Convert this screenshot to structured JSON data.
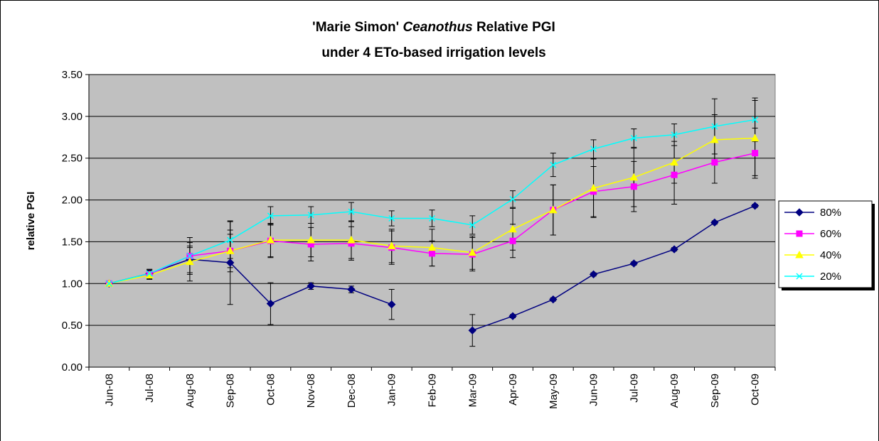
{
  "chart_data": {
    "type": "line",
    "title": [
      "'Marie Simon'",
      "Ceanothus",
      "Relative PGI"
    ],
    "subtitle": "under 4 ETo-based irrigation levels",
    "y_label": "relative PGI",
    "categories": [
      "Jun-08",
      "Jul-08",
      "Aug-08",
      "Sep-08",
      "Oct-08",
      "Nov-08",
      "Dec-08",
      "Jan-09",
      "Feb-09",
      "Mar-09",
      "Apr-09",
      "May-09",
      "Jun-09",
      "Jul-09",
      "Aug-09",
      "Sep-09",
      "Oct-09"
    ],
    "series": [
      {
        "name": "80%",
        "color": "#000080",
        "marker": "diamond",
        "values": [
          1.0,
          1.12,
          1.29,
          1.25,
          0.76,
          0.97,
          0.93,
          0.75,
          null,
          0.44,
          0.61,
          0.81,
          1.11,
          1.24,
          1.41,
          1.73,
          1.93
        ],
        "errors": [
          0,
          0.05,
          0.16,
          0.5,
          0.25,
          0.04,
          0.04,
          0.18,
          null,
          0.19,
          0.02,
          0.02,
          0.02,
          0.02,
          0.02,
          0.02,
          0.02
        ]
      },
      {
        "name": "60%",
        "color": "#FF00FF",
        "marker": "square",
        "values": [
          1.0,
          1.11,
          1.33,
          1.39,
          1.51,
          1.47,
          1.48,
          1.43,
          1.36,
          1.35,
          1.51,
          1.88,
          2.1,
          2.16,
          2.3,
          2.45,
          2.56
        ],
        "errors": [
          0,
          0.05,
          0.1,
          0.2,
          0.2,
          0.2,
          0.2,
          0.2,
          0.15,
          0.2,
          0.2,
          0.3,
          0.3,
          0.3,
          0.35,
          0.25,
          0.3
        ]
      },
      {
        "name": "40%",
        "color": "#FFFF00",
        "marker": "triangle",
        "values": [
          1.0,
          1.1,
          1.26,
          1.39,
          1.52,
          1.52,
          1.52,
          1.45,
          1.43,
          1.37,
          1.65,
          1.88,
          2.14,
          2.27,
          2.45,
          2.72,
          2.74
        ],
        "errors": [
          0,
          0.05,
          0.23,
          0.25,
          0.2,
          0.2,
          0.22,
          0.2,
          0.22,
          0.2,
          0.25,
          0.3,
          0.35,
          0.35,
          0.25,
          0.3,
          0.45
        ]
      },
      {
        "name": "20%",
        "color": "#00FFFF",
        "marker": "x",
        "values": [
          1.0,
          1.12,
          1.33,
          1.52,
          1.81,
          1.82,
          1.86,
          1.78,
          1.78,
          1.7,
          2.01,
          2.42,
          2.61,
          2.74,
          2.78,
          2.88,
          2.96
        ],
        "errors": [
          0,
          0.05,
          0.22,
          0.22,
          0.11,
          0.1,
          0.11,
          0.09,
          0.1,
          0.11,
          0.1,
          0.14,
          0.11,
          0.11,
          0.13,
          0.33,
          0.26
        ]
      }
    ],
    "ylim": [
      0,
      3.5
    ],
    "yticks": [
      {
        "value": 0,
        "label": "0.00"
      },
      {
        "value": 0.5,
        "label": "0.50"
      },
      {
        "value": 1,
        "label": "1.00"
      },
      {
        "value": 1.5,
        "label": "1.50"
      },
      {
        "value": 2,
        "label": "2.00"
      },
      {
        "value": 2.5,
        "label": "2.50"
      },
      {
        "value": 3,
        "label": "3.00"
      },
      {
        "value": 3.5,
        "label": "3.50"
      }
    ],
    "grid": true,
    "legend": "right",
    "plot_background": "#C0C0C0"
  }
}
